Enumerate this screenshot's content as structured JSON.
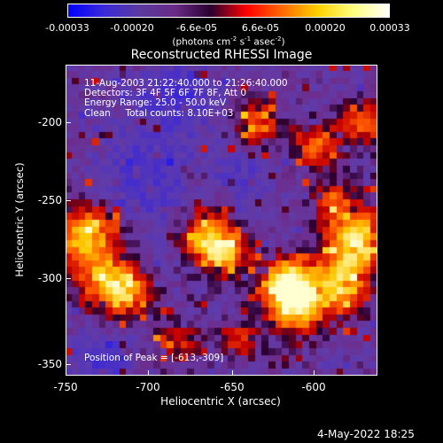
{
  "colorbar": {
    "tick_labels": [
      "-0.00033",
      "-0.00020",
      "-6.6e-05",
      "6.6e-05",
      "0.00020",
      "0.00033"
    ],
    "unit_label": "(photons cm^-2 s^-1 asec^-2)",
    "unit_parts": {
      "a": "(photons cm",
      "b": "-2",
      "c": " s",
      "d": "-1",
      "e": " asec",
      "f": "-2",
      "g": ")"
    },
    "colors": [
      "#0000ff",
      "#3b2ad6",
      "#5a3aa0",
      "#6a2a86",
      "#2a0030",
      "#ff0000",
      "#ff6a00",
      "#ffd000",
      "#ffff80",
      "#ffffff"
    ]
  },
  "chart_data": {
    "type": "heatmap",
    "title": "Reconstructed RHESSI Image",
    "xlabel": "Heliocentric X (arcsec)",
    "ylabel": "Heliocentric Y (arcsec)",
    "xlim": [
      -750,
      -580
    ],
    "ylim": [
      -360,
      -160
    ],
    "x_ticks": [
      "-750",
      "-700",
      "-650",
      "-600"
    ],
    "y_ticks": [
      "-200",
      "-250",
      "-300",
      "-350"
    ],
    "color_scale": {
      "min": -0.00033,
      "max": 0.00033
    },
    "annotation_lines": [
      "11-Aug-2003 21:22:40.000 to 21:26:40.000",
      "Detectors: 3F 4F 5F 6F 7F 8F, Att 0",
      "Energy Range: 25.0 - 50.0 keV",
      "Clean     Total counts: 8.10E+03"
    ],
    "peak_label": "Position of Peak = [-613,-309]"
  },
  "footer": {
    "date": "4-May-2022 18:25"
  }
}
